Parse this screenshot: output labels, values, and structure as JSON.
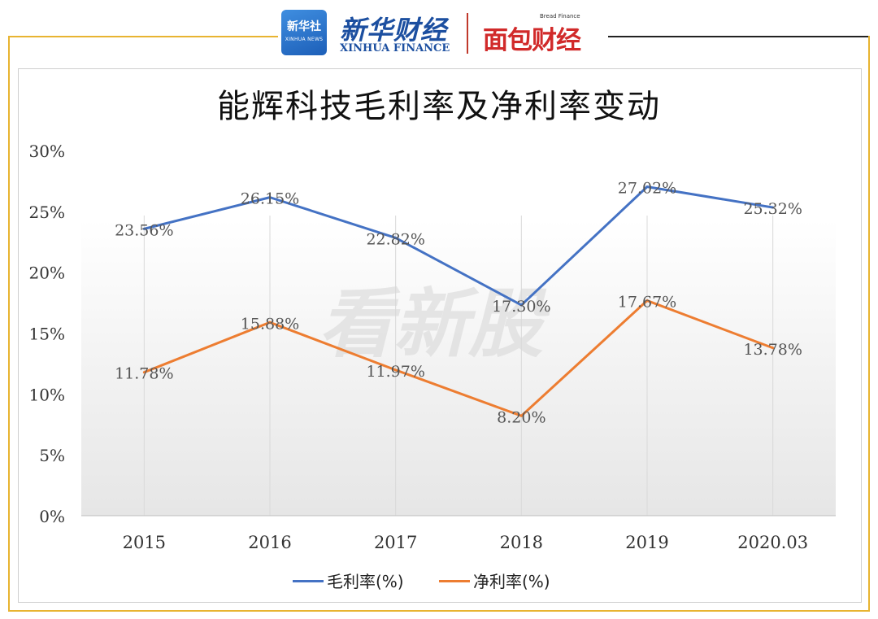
{
  "header": {
    "xinhua_badge_cn": "新华社",
    "xinhua_badge_en": "XINHUA NEWS",
    "xinhua_finance_cn": "新华财经",
    "xinhua_finance_en": "XINHUA FINANCE",
    "bread_finance_small": "Bread Finance",
    "bread_finance_cn": "面包财经"
  },
  "watermark": "看新股",
  "colors": {
    "frame_accent": "#e8b431",
    "gross_margin_line": "#4472c4",
    "net_margin_line": "#ed7d31"
  },
  "chart_data": {
    "type": "line",
    "title": "能辉科技毛利率及净利率变动",
    "categories": [
      "2015",
      "2016",
      "2017",
      "2018",
      "2019",
      "2020.03"
    ],
    "ylim": [
      0,
      30
    ],
    "yticks": [
      "0%",
      "5%",
      "10%",
      "15%",
      "20%",
      "25%",
      "30%"
    ],
    "grid": "vertical",
    "legend": "bottom",
    "series": [
      {
        "name": "毛利率(%)",
        "values": [
          23.56,
          26.15,
          22.82,
          17.3,
          27.02,
          25.32
        ],
        "labels": [
          "23.56%",
          "26.15%",
          "22.82%",
          "17.30%",
          "27.02%",
          "25.32%"
        ]
      },
      {
        "name": "净利率(%)",
        "values": [
          11.78,
          15.88,
          11.97,
          8.2,
          17.67,
          13.78
        ],
        "labels": [
          "11.78%",
          "15.88%",
          "11.97%",
          "8.20%",
          "17.67%",
          "13.78%"
        ]
      }
    ]
  }
}
